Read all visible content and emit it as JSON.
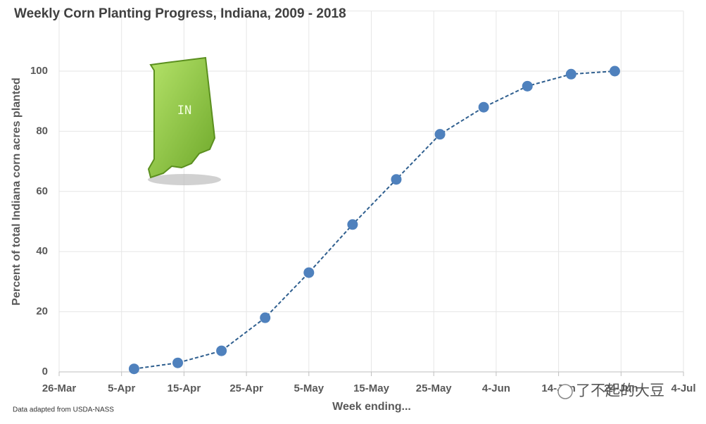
{
  "chart_data": {
    "type": "line",
    "title": "Weekly Corn Planting Progress, Indiana, 2009 - 2018",
    "y_label": "Percent of total Indiana corn acres planted",
    "x_label": "Week ending...",
    "source": "Data adapted from USDA-NASS",
    "map_label": "IN",
    "watermark": "了不起的大豆",
    "x": [
      "7-Apr",
      "14-Apr",
      "21-Apr",
      "28-Apr",
      "5-May",
      "12-May",
      "19-May",
      "26-May",
      "2-Jun",
      "9-Jun",
      "16-Jun",
      "23-Jun"
    ],
    "series": [
      {
        "color": "#4f81bd",
        "values": [
          1,
          3,
          7,
          18,
          33,
          49,
          64,
          79,
          88,
          95,
          99,
          100
        ]
      }
    ],
    "xlim": [
      "26-Mar",
      "4-Jul"
    ],
    "xticks": [
      "26-Mar",
      "5-Apr",
      "15-Apr",
      "25-Apr",
      "5-May",
      "15-May",
      "25-May",
      "4-Jun",
      "14-Jun",
      "24-Jun",
      "4-Jul"
    ],
    "ylim": [
      0,
      120
    ],
    "yticks": [
      0,
      20,
      40,
      60,
      80,
      100
    ],
    "grid": true
  }
}
